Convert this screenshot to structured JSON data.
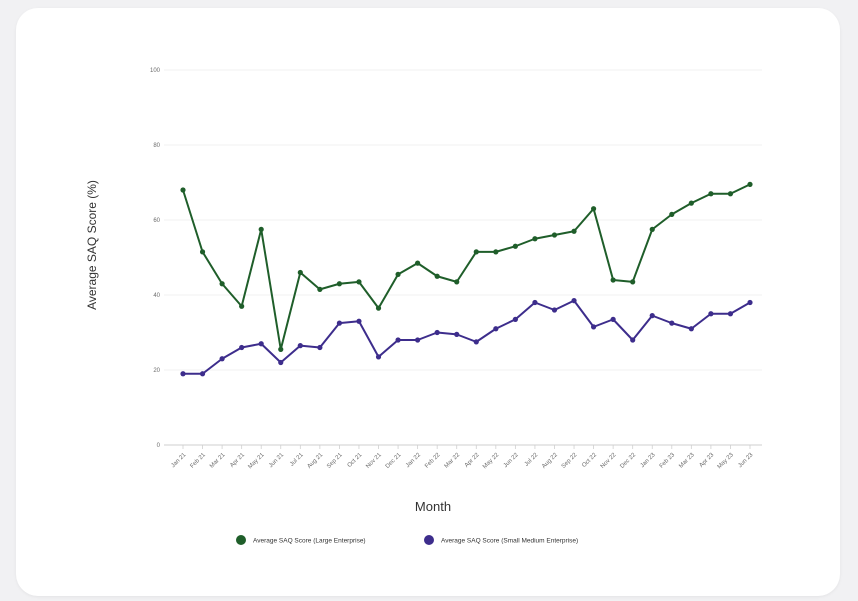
{
  "chart_data": {
    "type": "line",
    "title": "",
    "xlabel": "Month",
    "ylabel": "Average SAQ Score (%)",
    "ylim": [
      0,
      100
    ],
    "yticks": [
      0,
      20,
      40,
      60,
      80,
      100
    ],
    "grid": true,
    "legend_position": "bottom",
    "categories": [
      "Jan 21",
      "Feb 21",
      "Mar 21",
      "Apr 21",
      "May 21",
      "Jun 21",
      "Jul 21",
      "Aug 21",
      "Sep 21",
      "Oct 21",
      "Nov 21",
      "Dec 21",
      "Jan 22",
      "Feb 22",
      "Mar 22",
      "Apr 22",
      "May 22",
      "Jun 22",
      "Jul 22",
      "Aug 22",
      "Sep 22",
      "Oct 22",
      "Nov 22",
      "Dec 22",
      "Jan 23",
      "Feb 23",
      "Mar 23",
      "Apr 23",
      "May 23",
      "Jun 23"
    ],
    "series": [
      {
        "name": "Average SAQ Score (Large Enterprise)",
        "color": "#1f5e2a",
        "values": [
          68,
          51.5,
          43,
          37,
          57.5,
          25.5,
          46,
          41.5,
          43,
          43.5,
          36.5,
          45.5,
          48.5,
          45,
          43.5,
          51.5,
          51.5,
          53,
          55,
          56,
          57,
          63,
          44,
          43.5,
          57.5,
          61.5,
          64.5,
          67,
          67,
          69.5
        ]
      },
      {
        "name": "Average SAQ Score (Small Medium Enterprise)",
        "color": "#3d2d8c",
        "values": [
          19,
          19,
          23,
          26,
          27,
          22,
          26.5,
          26,
          32.5,
          33,
          23.5,
          28,
          28,
          30,
          29.5,
          27.5,
          31,
          33.5,
          38,
          36,
          38.5,
          31.5,
          33.5,
          28,
          34.5,
          32.5,
          31,
          35,
          35,
          38
        ]
      }
    ]
  }
}
